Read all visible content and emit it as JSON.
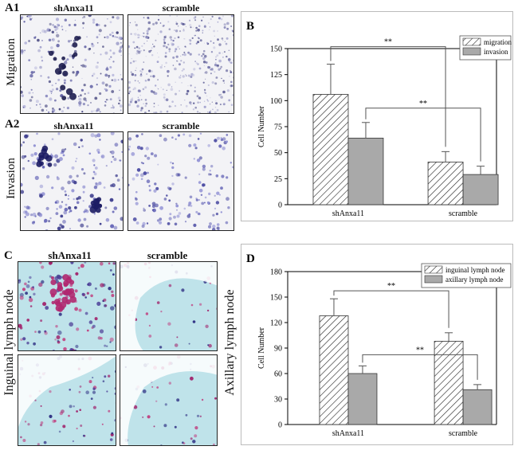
{
  "panels": {
    "a1": {
      "label": "A1",
      "row_label": "Migration",
      "col_left": "shAnxa11",
      "col_right": "scramble"
    },
    "a2": {
      "label": "A2",
      "row_label": "Invasion",
      "col_left": "shAnxa11",
      "col_right": "scramble"
    },
    "c": {
      "label": "C",
      "col_left": "shAnxa11",
      "col_right": "scramble",
      "row_label_left": "Inguinal lymph node",
      "row_label_right": "Axillary lymph node"
    }
  },
  "chart_data": [
    {
      "label": "B",
      "type": "bar",
      "categories": [
        "shAnxa11",
        "scramble"
      ],
      "series": [
        {
          "name": "migration",
          "values": [
            106,
            41
          ],
          "errors": [
            29,
            10
          ],
          "pattern": "hatch"
        },
        {
          "name": "invasion",
          "values": [
            64,
            29
          ],
          "errors": [
            15,
            8
          ],
          "pattern": "gray"
        }
      ],
      "ylabel": "Cell Number",
      "ylim": [
        0,
        150
      ],
      "yticks": [
        0,
        25,
        50,
        75,
        100,
        125,
        150
      ],
      "legend_position": "top-right",
      "significance": [
        {
          "series": "migration",
          "text": "**"
        },
        {
          "series": "invasion",
          "text": "**"
        }
      ]
    },
    {
      "label": "D",
      "type": "bar",
      "categories": [
        "shAnxa11",
        "scramble"
      ],
      "series": [
        {
          "name": "inguinal lymph node",
          "values": [
            128,
            98
          ],
          "errors": [
            20,
            10
          ],
          "pattern": "hatch"
        },
        {
          "name": "axillary lymph node",
          "values": [
            60,
            41
          ],
          "errors": [
            9,
            6
          ],
          "pattern": "gray"
        }
      ],
      "ylabel": "Cell Number",
      "ylim": [
        0,
        180
      ],
      "yticks": [
        0,
        30,
        60,
        90,
        120,
        150,
        180
      ],
      "legend_position": "top-right",
      "significance": [
        {
          "series": "inguinal lymph node",
          "text": "**"
        },
        {
          "series": "axillary lymph node",
          "text": "**"
        }
      ]
    }
  ]
}
